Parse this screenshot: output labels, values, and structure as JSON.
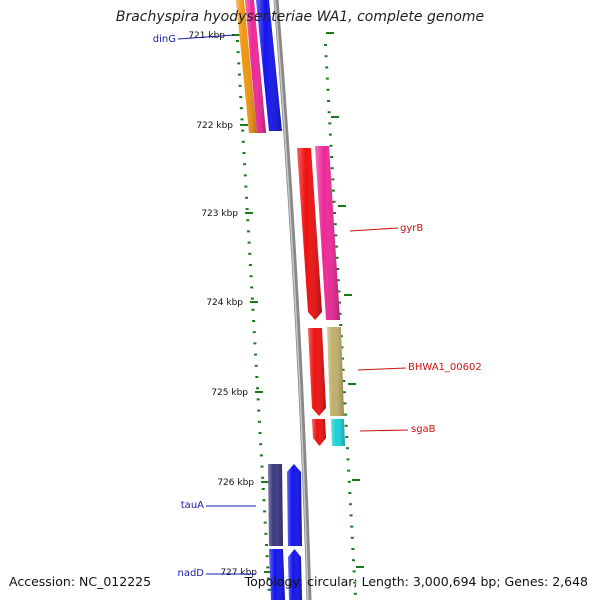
{
  "title": "Brachyspira hyodysenteriae WA1, complete genome",
  "footer": {
    "accession": "Accession: NC_012225",
    "summary": "Topology: circular; Length: 3,000,694 bp; Genes: 2,648"
  },
  "colors": {
    "backbone": "#888888",
    "tick": "#1a7a1a",
    "label_blue": "#1a1aa8",
    "label_red": "#cc1111",
    "orange": "#f0960f",
    "magenta": "#ee2899",
    "blue": "#1414ee",
    "red": "#ee1111",
    "olive": "#bfb06a",
    "cyan": "#18d2d6",
    "navy": "#3a3680"
  },
  "scale_labels": [
    "721 kbp",
    "722 kbp",
    "723 kbp",
    "724 kbp",
    "725 kbp",
    "726 kbp",
    "727 kbp"
  ],
  "gene_labels": [
    {
      "text": "dinG",
      "color": "blue"
    },
    {
      "text": "gyrB",
      "color": "red"
    },
    {
      "text": "BHWA1_00602",
      "color": "red"
    },
    {
      "text": "sgaB",
      "color": "red"
    },
    {
      "text": "tauA",
      "color": "blue"
    },
    {
      "text": "nadD",
      "color": "blue"
    }
  ]
}
